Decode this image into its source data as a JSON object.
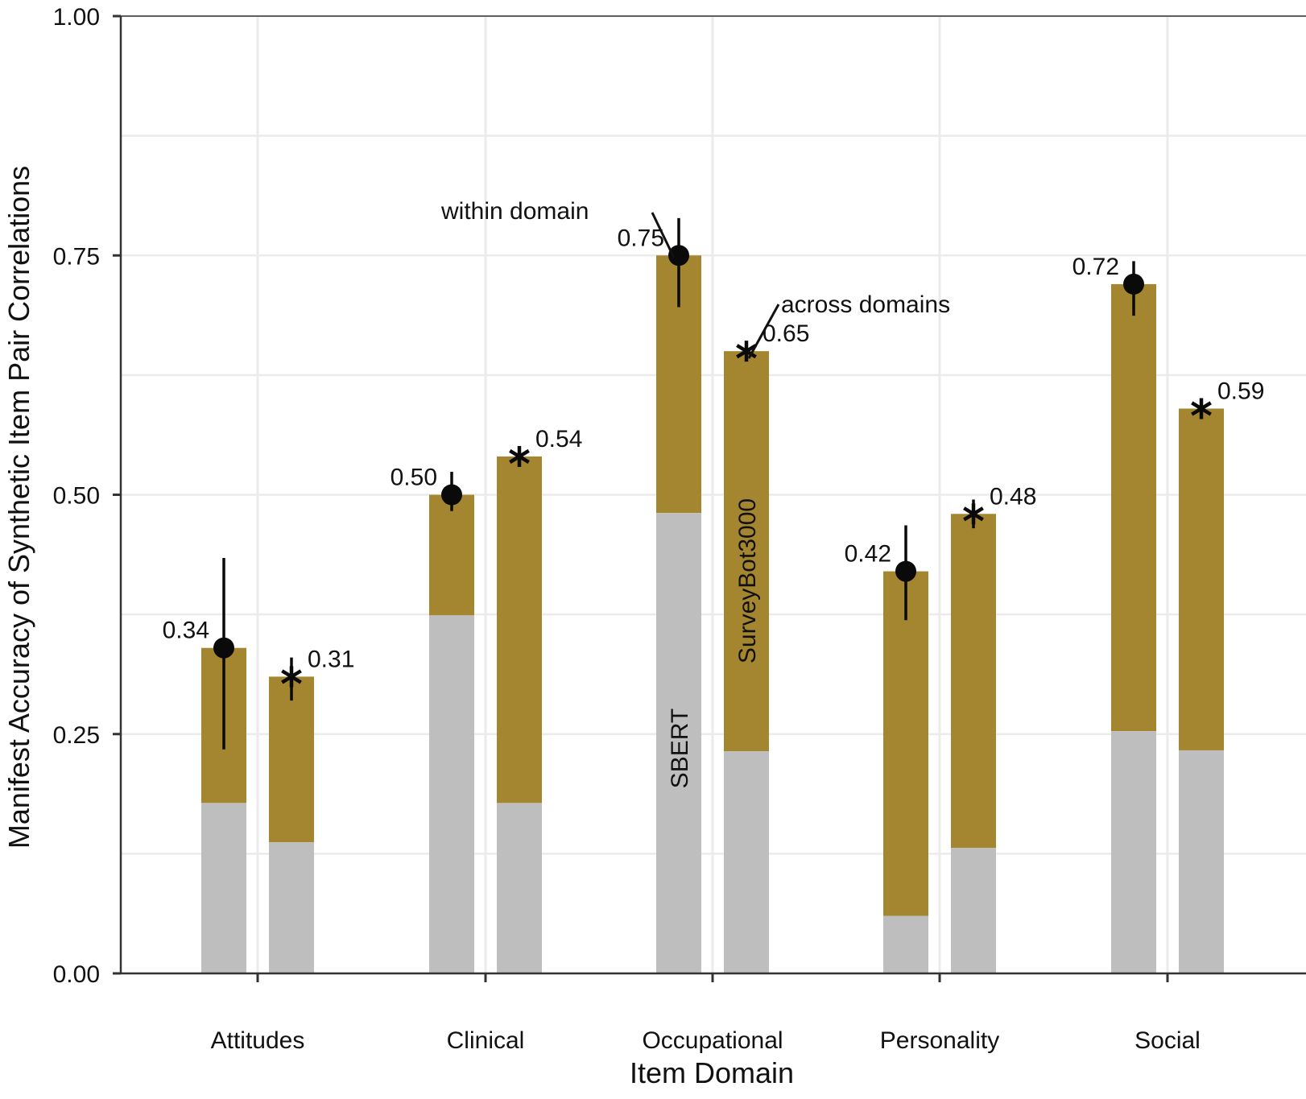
{
  "chart_data": {
    "type": "bar",
    "title": "",
    "xlabel": "Item Domain",
    "ylabel": "Manifest Accuracy of Synthetic Item Pair Correlations",
    "ylim": [
      0,
      1
    ],
    "yticks": [
      "0.00",
      "0.25",
      "0.50",
      "0.75",
      "1.00"
    ],
    "ytick_values": [
      0,
      0.25,
      0.5,
      0.75,
      1.0
    ],
    "grid": true,
    "categories": [
      "Attitudes",
      "Clinical",
      "Occupational",
      "Personality",
      "Social"
    ],
    "stack_layers": [
      "SBERT",
      "SurveyBot3000"
    ],
    "series": [
      {
        "name": "within domain",
        "marker": "circle",
        "values": [
          0.34,
          0.5,
          0.75,
          0.42,
          0.72
        ],
        "labels": [
          "0.34",
          "0.50",
          "0.75",
          "0.42",
          "0.72"
        ],
        "sbert_values": [
          0.178,
          0.374,
          0.481,
          0.06,
          0.253
        ],
        "error_low": [
          0.234,
          0.483,
          0.696,
          0.369,
          0.687
        ],
        "error_high": [
          0.434,
          0.524,
          0.789,
          0.468,
          0.744
        ]
      },
      {
        "name": "across domains",
        "marker": "asterisk",
        "values": [
          0.31,
          0.54,
          0.65,
          0.48,
          0.59
        ],
        "labels": [
          "0.31",
          "0.54",
          "0.65",
          "0.48",
          "0.59"
        ],
        "sbert_values": [
          0.137,
          0.178,
          0.232,
          0.131,
          0.233
        ],
        "error_low": [
          0.285,
          0.535,
          0.64,
          0.465,
          0.585
        ],
        "error_high": [
          0.33,
          0.55,
          0.66,
          0.495,
          0.6
        ]
      }
    ],
    "annotations": {
      "within_label": "within domain",
      "across_label": "across domains",
      "sbert_label": "SBERT",
      "surveybot_label": "SurveyBot3000"
    },
    "colors": {
      "surveybot": "#a48530",
      "sbert": "#bebebe",
      "grid": "#ebebeb",
      "axis": "#333333",
      "marker": "#0a0a0a"
    }
  }
}
